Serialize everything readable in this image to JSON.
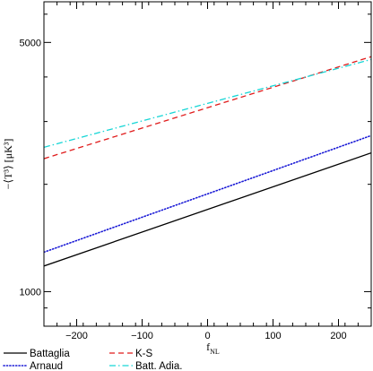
{
  "chart_data": {
    "type": "line",
    "title": "",
    "xlabel": "f",
    "xlabel_subscript": "NL",
    "ylabel": "−⟨T³⟩  [μK³]",
    "xlim": [
      -250,
      250
    ],
    "ylim": [
      800,
      6500
    ],
    "yscale": "log",
    "x_ticks": [
      -200,
      -100,
      0,
      100,
      200
    ],
    "x_tick_labels": [
      "−200",
      "−100",
      "0",
      "100",
      "200"
    ],
    "y_ticks": [
      1000,
      5000
    ],
    "y_tick_labels": [
      "1000",
      "5000"
    ],
    "grid": false,
    "legend_position": "bottom",
    "series": [
      {
        "name": "Battaglia",
        "x": [
          -250,
          250
        ],
        "y": [
          1180,
          2450
        ],
        "color": "#000000",
        "style": "solid"
      },
      {
        "name": "Arnaud",
        "x": [
          -250,
          250
        ],
        "y": [
          1290,
          2740
        ],
        "color": "#1a1ad6",
        "style": "dotted"
      },
      {
        "name": "K-S",
        "x": [
          -250,
          250
        ],
        "y": [
          2360,
          4560
        ],
        "color": "#e01b1b",
        "style": "dashed"
      },
      {
        "name": "Batt. Adia.",
        "x": [
          -250,
          250
        ],
        "y": [
          2540,
          4480
        ],
        "color": "#17d6d6",
        "style": "dashdot"
      }
    ]
  }
}
